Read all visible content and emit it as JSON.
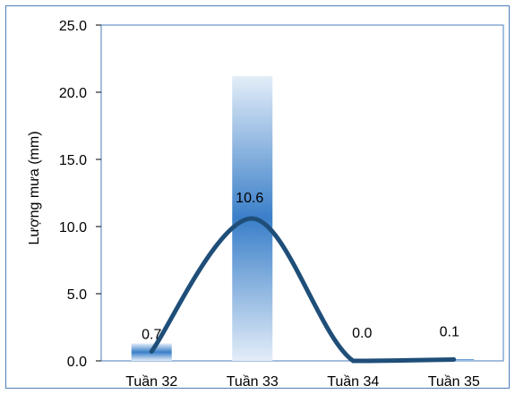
{
  "chart_data": {
    "type": "bar",
    "title": "",
    "xlabel": "",
    "ylabel": "Lượng mưa (mm)",
    "ylim": [
      0,
      25
    ],
    "yticks": [
      "0.0",
      "5.0",
      "10.0",
      "15.0",
      "20.0",
      "25.0"
    ],
    "categories": [
      "Tuần 32",
      "Tuần 33",
      "Tuần 34",
      "Tuần 35"
    ],
    "bar_values": [
      1.3,
      21.2,
      0.0,
      0.15
    ],
    "line_values": [
      0.7,
      10.6,
      0.0,
      0.1
    ],
    "data_labels": [
      "0.7",
      "10.6",
      "0.0",
      "0.1"
    ],
    "line_color": "#1f4e79",
    "bar_color_dark": "#3a7fc9",
    "bar_color_light": "#e3edf8",
    "frame_color": "#4a7ebb",
    "grid": false
  }
}
